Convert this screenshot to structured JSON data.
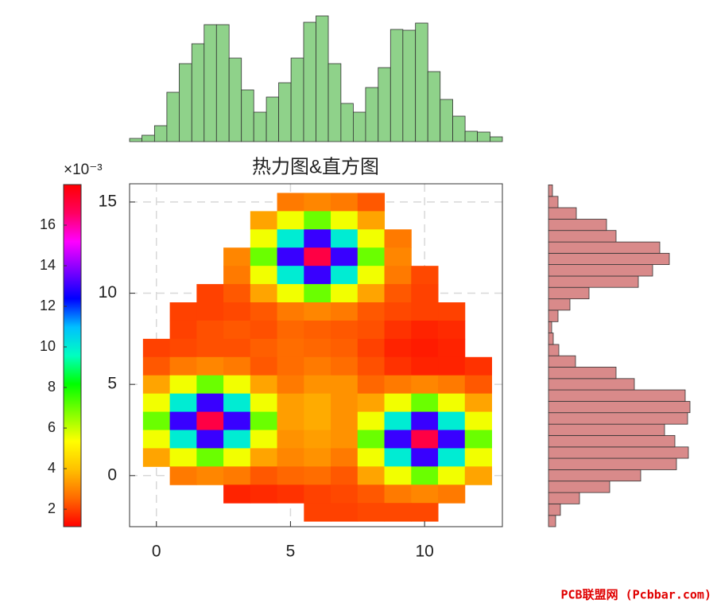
{
  "chart_data": [
    {
      "type": "heatmap",
      "title": "热力图&直方图",
      "x": [
        0,
        1,
        2,
        3,
        4,
        5,
        6,
        7,
        8,
        9,
        10,
        11,
        12
      ],
      "y": [
        15,
        14,
        13,
        12,
        11,
        10,
        9,
        8,
        7,
        6,
        5,
        4,
        3,
        2,
        1,
        0,
        -1,
        -2
      ],
      "values": [
        [
          null,
          null,
          null,
          null,
          null,
          2.8,
          3,
          2.8,
          2.3,
          null,
          null,
          null,
          null
        ],
        [
          null,
          null,
          null,
          null,
          3.5,
          5.5,
          7,
          5.5,
          3.5,
          null,
          null,
          null,
          null
        ],
        [
          null,
          null,
          null,
          null,
          5.5,
          10,
          13,
          10,
          5.5,
          2.8,
          null,
          null,
          null
        ],
        [
          null,
          null,
          null,
          3,
          7,
          13,
          17,
          13,
          7,
          3,
          null,
          null,
          null
        ],
        [
          null,
          null,
          null,
          2.8,
          5.5,
          10,
          13,
          10,
          5.5,
          2.8,
          2.1,
          null,
          null
        ],
        [
          null,
          null,
          2,
          2.3,
          3.5,
          5.5,
          7,
          5.5,
          3.5,
          2.3,
          2,
          null,
          null
        ],
        [
          null,
          2,
          2,
          2.1,
          2.3,
          2.8,
          3,
          2.8,
          2.3,
          2.1,
          2,
          2,
          null
        ],
        [
          null,
          2,
          2.2,
          2.3,
          2.2,
          2.5,
          2.4,
          2.3,
          2.2,
          1.8,
          1.6,
          1.7,
          null
        ],
        [
          2,
          2.1,
          2.2,
          2.2,
          2.4,
          2.6,
          2.5,
          2.4,
          2,
          1.6,
          1.5,
          1.6,
          null
        ],
        [
          2.3,
          2.8,
          3,
          2.8,
          2.3,
          2.6,
          2.8,
          2.6,
          2.2,
          1.8,
          1.6,
          1.6,
          1.8
        ],
        [
          3.5,
          5.5,
          7,
          5.5,
          3.5,
          2.8,
          3.2,
          3.2,
          2.5,
          2.8,
          3,
          2.8,
          2.3
        ],
        [
          5.5,
          10,
          13,
          10,
          5.5,
          3.4,
          3.6,
          3.2,
          3.5,
          5.5,
          7,
          5.5,
          3.5
        ],
        [
          7,
          13,
          17,
          13,
          7,
          3.4,
          3.6,
          3.2,
          5.5,
          10,
          13,
          10,
          5.5
        ],
        [
          5.5,
          10,
          13,
          10,
          5.5,
          3.2,
          3.4,
          3.2,
          7,
          13,
          17,
          13,
          7
        ],
        [
          3.5,
          5.5,
          7,
          5.5,
          3.5,
          3,
          3.2,
          2.8,
          5.5,
          10,
          13,
          10,
          5.5
        ],
        [
          null,
          2.8,
          3,
          2.8,
          2.3,
          2.5,
          2.6,
          2.3,
          3.5,
          5.5,
          7,
          5.5,
          3.5
        ],
        [
          null,
          null,
          null,
          1.6,
          1.7,
          1.8,
          2,
          2.1,
          2.3,
          2.8,
          3,
          2.8,
          null
        ],
        [
          null,
          null,
          null,
          null,
          null,
          null,
          2,
          2,
          2.1,
          2.1,
          2.1,
          null,
          null
        ]
      ],
      "xlim": [
        -1,
        12.9
      ],
      "ylim": [
        -2.8,
        16
      ],
      "xticks": [
        0,
        5,
        10
      ],
      "yticks": [
        0,
        5,
        10,
        15
      ],
      "grid": true,
      "colorbar": {
        "lim": [
          1.14,
          18
        ],
        "ticks": [
          2,
          4,
          6,
          8,
          10,
          12,
          14,
          16
        ],
        "offset_text": "×10⁻³",
        "colormap": [
          "#ff0000",
          "#ff6a00",
          "#ffc000",
          "#ffff00",
          "#80ff00",
          "#00ff00",
          "#00ffc0",
          "#00c0ff",
          "#0000ff",
          "#8000ff",
          "#ff00ff",
          "#ff0060",
          "#ff0000"
        ]
      }
    },
    {
      "type": "histogram",
      "orientation": "vertical",
      "color": "#8fd28a",
      "bins": [
        -1,
        -0.54,
        -0.07,
        0.39,
        0.85,
        1.32,
        1.78,
        2.24,
        2.71,
        3.17,
        3.63,
        4.1,
        4.56,
        5.02,
        5.49,
        5.95,
        6.41,
        6.88,
        7.34,
        7.8,
        8.27,
        8.73,
        9.19,
        9.66,
        10.12,
        10.58,
        11.05,
        11.51,
        11.97,
        12.44,
        12.9
      ],
      "values": [
        4,
        8,
        20,
        62,
        98,
        123,
        147,
        147,
        105,
        65,
        37,
        56,
        74,
        105,
        150,
        158,
        98,
        48,
        37,
        68,
        93,
        141,
        140,
        149,
        88,
        53,
        32,
        13,
        12,
        6
      ],
      "ylim": [
        0,
        160
      ]
    },
    {
      "type": "histogram",
      "orientation": "horizontal",
      "color": "#d98a8a",
      "bins": [
        -2.8,
        -2.18,
        -1.55,
        -0.93,
        -0.3,
        0.32,
        0.95,
        1.57,
        2.2,
        2.82,
        3.45,
        4.07,
        4.7,
        5.32,
        5.95,
        6.57,
        7.19,
        7.82,
        8.44,
        9.07,
        9.69,
        10.32,
        10.94,
        11.57,
        12.19,
        12.81,
        13.44,
        14.06,
        14.69,
        15.31,
        15.94
      ],
      "values": [
        9,
        15,
        39,
        77,
        116,
        161,
        176,
        159,
        146,
        175,
        178,
        172,
        108,
        85,
        34,
        13,
        6,
        4,
        12,
        27,
        51,
        113,
        131,
        152,
        140,
        85,
        73,
        35,
        12,
        5
      ],
      "xlim": [
        0,
        190
      ]
    }
  ],
  "watermark": "PCB联盟网 (Pcbbar.com)"
}
